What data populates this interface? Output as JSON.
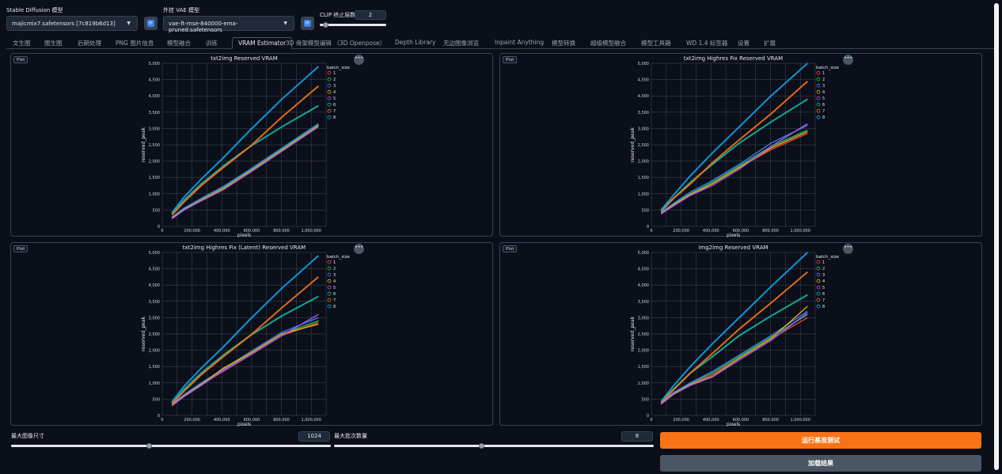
{
  "header": {
    "sd_model_label": "Stable Diffusion 模型",
    "sd_model_value": "majicmix7.safetensors [7c819b6d13]",
    "vae_label": "外挂 VAE 模型",
    "vae_value": "vae-ft-mse-840000-ema-pruned.safetensors",
    "clip_label": "CLIP 终止层数",
    "clip_value": "2",
    "refresh_icon": "refresh-icon"
  },
  "tabs": [
    "文生图",
    "图生图",
    "后期处理",
    "PNG 图片信息",
    "模型融合",
    "训练",
    "VRAM Estimator",
    "3D 骨架模型编辑 （3D Openpose）",
    "Depth Library",
    "无边图像浏览",
    "Inpaint Anything",
    "模型转换",
    "超级模型融合",
    "模型工具箱",
    "WD 1.4 标签器",
    "设置",
    "扩展"
  ],
  "active_tab": "VRAM Estimator",
  "plot_badge": "Plot",
  "more_icon": "ellipsis-icon",
  "legend_title": "batch_size",
  "series_colors": [
    "#ef4444",
    "#22c55e",
    "#3b82f6",
    "#eab308",
    "#a855f7",
    "#14b8a6",
    "#f97316",
    "#0ea5e9"
  ],
  "chart_data": [
    {
      "type": "line",
      "title": "txt2img Reserved VRAM",
      "xlabel": "pixels",
      "ylabel": "reserved_peak",
      "xlim": [
        0,
        1100000
      ],
      "ylim": [
        0,
        5000
      ],
      "xticks": [
        "0",
        "200,000",
        "400,000",
        "600,000",
        "800,000",
        "1,000,000"
      ],
      "yticks": [
        "0",
        "500",
        "1,000",
        "1,500",
        "2,000",
        "2,500",
        "3,000",
        "3,500",
        "4,000",
        "4,500",
        "5,000"
      ],
      "x": [
        65536,
        147456,
        262144,
        409600,
        589824,
        802816,
        1048576
      ],
      "series": [
        {
          "name": "1",
          "values": [
            240,
            520,
            820,
            1180,
            1700,
            2350,
            3100
          ]
        },
        {
          "name": "2",
          "values": [
            260,
            540,
            840,
            1200,
            1720,
            2370,
            3120
          ]
        },
        {
          "name": "3",
          "values": [
            280,
            560,
            860,
            1220,
            1750,
            2400,
            3150
          ]
        },
        {
          "name": "4",
          "values": [
            260,
            520,
            800,
            1150,
            1680,
            2330,
            3080
          ]
        },
        {
          "name": "5",
          "values": [
            230,
            500,
            780,
            1120,
            1650,
            2300,
            3050
          ]
        },
        {
          "name": "6",
          "values": [
            380,
            800,
            1300,
            1850,
            2450,
            3050,
            3700
          ]
        },
        {
          "name": "7",
          "values": [
            350,
            750,
            1250,
            1800,
            2450,
            3350,
            4300
          ]
        },
        {
          "name": "8",
          "values": [
            420,
            900,
            1450,
            2100,
            2950,
            3900,
            4900
          ]
        }
      ]
    },
    {
      "type": "line",
      "title": "txt2img Highres Fix Reserved VRAM",
      "xlabel": "pixels",
      "ylabel": "reserved_peak",
      "xlim": [
        0,
        1100000
      ],
      "ylim": [
        0,
        5000
      ],
      "xticks": [
        "0",
        "200,000",
        "400,000",
        "600,000",
        "800,000",
        "1,000,000"
      ],
      "yticks": [
        "0",
        "500",
        "1,000",
        "1,500",
        "2,000",
        "2,500",
        "3,000",
        "3,500",
        "4,000",
        "4,500",
        "5,000"
      ],
      "x": [
        65536,
        147456,
        262144,
        409600,
        589824,
        802816,
        1048576
      ],
      "series": [
        {
          "name": "1",
          "values": [
            380,
            650,
            950,
            1300,
            1800,
            2350,
            2850
          ]
        },
        {
          "name": "2",
          "values": [
            400,
            680,
            1000,
            1350,
            1850,
            2450,
            2950
          ]
        },
        {
          "name": "3",
          "values": [
            420,
            700,
            1050,
            1400,
            1900,
            2550,
            3100
          ]
        },
        {
          "name": "4",
          "values": [
            400,
            650,
            980,
            1300,
            1800,
            2400,
            2900
          ]
        },
        {
          "name": "5",
          "values": [
            380,
            620,
            950,
            1250,
            1750,
            2450,
            3150
          ]
        },
        {
          "name": "6",
          "values": [
            450,
            850,
            1350,
            1900,
            2550,
            3200,
            3900
          ]
        },
        {
          "name": "7",
          "values": [
            480,
            850,
            1300,
            1950,
            2650,
            3450,
            4450
          ]
        },
        {
          "name": "8",
          "values": [
            500,
            950,
            1550,
            2250,
            3050,
            4000,
            5000
          ]
        }
      ]
    },
    {
      "type": "line",
      "title": "txt2img Highres Fix (Latent) Reserved VRAM",
      "xlabel": "pixels",
      "ylabel": "reserved_peak",
      "xlim": [
        0,
        1100000
      ],
      "ylim": [
        0,
        5000
      ],
      "xticks": [
        "0",
        "200,000",
        "400,000",
        "600,000",
        "800,000",
        "1,000,000"
      ],
      "yticks": [
        "0",
        "500",
        "1,000",
        "1,500",
        "2,000",
        "2,500",
        "3,000",
        "3,500",
        "4,000",
        "4,500",
        "5,000"
      ],
      "x": [
        65536,
        147456,
        262144,
        409600,
        589824,
        802816,
        1048576
      ],
      "series": [
        {
          "name": "1",
          "values": [
            300,
            600,
            950,
            1350,
            1850,
            2450,
            2850
          ]
        },
        {
          "name": "2",
          "values": [
            320,
            620,
            980,
            1400,
            1900,
            2500,
            2900
          ]
        },
        {
          "name": "3",
          "values": [
            340,
            640,
            1000,
            1420,
            1950,
            2550,
            3000
          ]
        },
        {
          "name": "4",
          "values": [
            320,
            600,
            950,
            1450,
            1900,
            2500,
            2800
          ]
        },
        {
          "name": "5",
          "values": [
            300,
            580,
            920,
            1380,
            1850,
            2450,
            3100
          ]
        },
        {
          "name": "6",
          "values": [
            380,
            800,
            1300,
            1850,
            2450,
            3050,
            3650
          ]
        },
        {
          "name": "7",
          "values": [
            350,
            750,
            1250,
            1800,
            2450,
            3300,
            4250
          ]
        },
        {
          "name": "8",
          "values": [
            420,
            900,
            1450,
            2100,
            2950,
            3900,
            4900
          ]
        }
      ]
    },
    {
      "type": "line",
      "title": "img2img Reserved VRAM",
      "xlabel": "pixels",
      "ylabel": "reserved_peak",
      "xlim": [
        0,
        1100000
      ],
      "ylim": [
        0,
        5000
      ],
      "xticks": [
        "0",
        "200,000",
        "400,000",
        "600,000",
        "800,000",
        "1,000,000"
      ],
      "yticks": [
        "0",
        "500",
        "1,000",
        "1,500",
        "2,000",
        "2,500",
        "3,000",
        "3,500",
        "4,000",
        "4,500",
        "5,000"
      ],
      "x": [
        65536,
        147456,
        262144,
        409600,
        589824,
        802816,
        1048576
      ],
      "series": [
        {
          "name": "1",
          "values": [
            350,
            650,
            950,
            1250,
            1750,
            2350,
            3000
          ]
        },
        {
          "name": "2",
          "values": [
            370,
            680,
            980,
            1300,
            1800,
            2400,
            3100
          ]
        },
        {
          "name": "3",
          "values": [
            390,
            700,
            1000,
            1350,
            1850,
            2450,
            3200
          ]
        },
        {
          "name": "4",
          "values": [
            370,
            660,
            950,
            1200,
            1750,
            2350,
            3350
          ]
        },
        {
          "name": "5",
          "values": [
            350,
            640,
            920,
            1180,
            1700,
            2300,
            3150
          ]
        },
        {
          "name": "6",
          "values": [
            420,
            800,
            1300,
            1800,
            2450,
            3050,
            3700
          ]
        },
        {
          "name": "7",
          "values": [
            400,
            780,
            1300,
            1900,
            2650,
            3450,
            4400
          ]
        },
        {
          "name": "8",
          "values": [
            430,
            900,
            1500,
            2200,
            3000,
            3950,
            5000
          ]
        }
      ]
    }
  ],
  "bottom": {
    "max_size_label": "最大图像尺寸",
    "max_size_value": "1024",
    "max_size_fraction": 0.43,
    "max_batch_label": "最大批次数量",
    "max_batch_value": "8",
    "max_batch_fraction": 0.46,
    "run_label": "运行基准测试",
    "load_label": "加载结果",
    "run_color": "#f97316",
    "load_color": "#4b5563"
  }
}
